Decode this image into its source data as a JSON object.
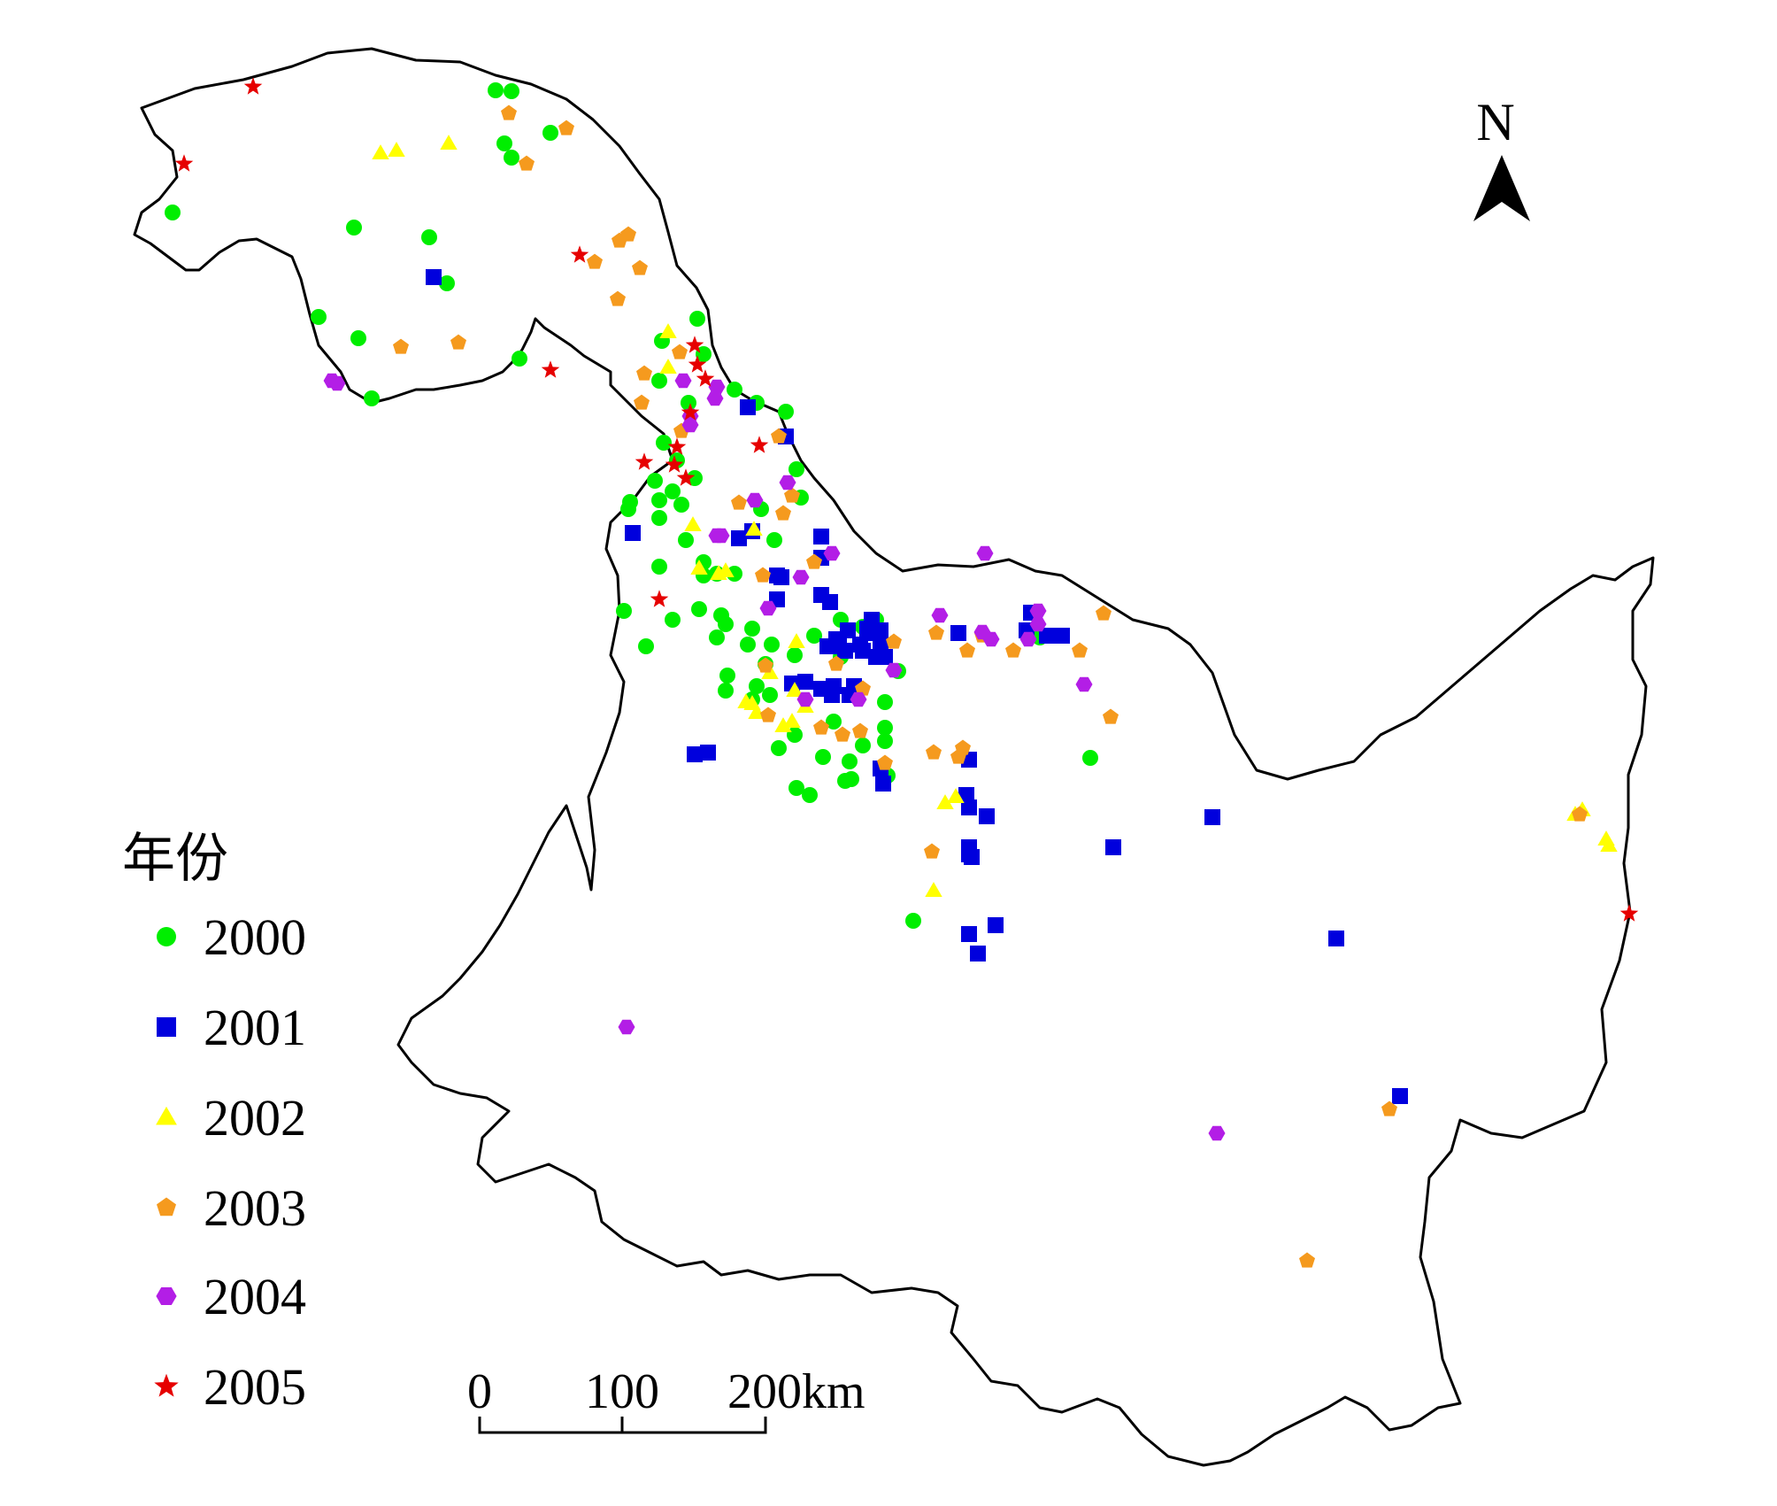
{
  "legend": {
    "title": "年份",
    "items": [
      {
        "label": "2000",
        "shape": "circle",
        "color": "#00ee00"
      },
      {
        "label": "2001",
        "shape": "square",
        "color": "#0000dd"
      },
      {
        "label": "2002",
        "shape": "triangle",
        "color": "#ffff00"
      },
      {
        "label": "2003",
        "shape": "pentagon",
        "color": "#f59a1e"
      },
      {
        "label": "2004",
        "shape": "hexagon",
        "color": "#b31ee6"
      },
      {
        "label": "2005",
        "shape": "star",
        "color": "#e60000"
      }
    ]
  },
  "north_arrow": {
    "label": "N",
    "icon": "north-arrow-icon"
  },
  "scale_bar": {
    "labels": [
      "0",
      "100",
      "200km"
    ]
  }
}
